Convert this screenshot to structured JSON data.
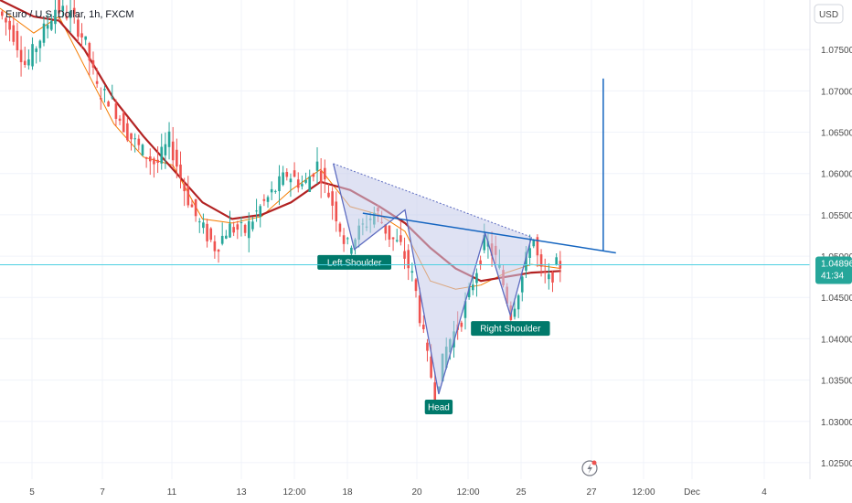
{
  "symbol_title": "Euro / U.S. Dollar, 1h, FXCM",
  "currency_button": "USD",
  "current_price": {
    "value": "1.04896",
    "countdown": "41:34"
  },
  "colors": {
    "up": "#26a69a",
    "down": "#ef5350",
    "ma_slow": "#b22222",
    "ma_fast": "#f57c00",
    "pattern_fill": "#c5cae9",
    "pattern_line": "#5c6bc0",
    "trendline": "#1565c0",
    "price_line": "#4dd0e1",
    "label_bg": "#00796b"
  },
  "chart_data": {
    "type": "candlestick",
    "title": "",
    "y_ticks": [
      "1.07500",
      "1.07000",
      "1.06500",
      "1.06000",
      "1.05500",
      "1.05000",
      "1.04500",
      "1.04000",
      "1.03500",
      "1.03000",
      "1.02500"
    ],
    "x_ticks": [
      "5",
      "7",
      "11",
      "13",
      "12:00",
      "18",
      "20",
      "12:00",
      "25",
      "27",
      "12:00",
      "Dec",
      "4"
    ],
    "ylim": [
      1.023,
      1.081
    ],
    "price_path": [
      [
        0,
        1.08
      ],
      [
        4,
        1.077
      ],
      [
        7,
        1.073
      ],
      [
        10,
        1.076
      ],
      [
        14,
        1.08
      ],
      [
        18,
        1.079
      ],
      [
        21,
        1.076
      ],
      [
        24,
        1.07
      ],
      [
        27,
        1.069
      ],
      [
        31,
        1.065
      ],
      [
        34,
        1.063
      ],
      [
        38,
        1.061
      ],
      [
        41,
        1.064
      ],
      [
        45,
        1.0575
      ],
      [
        48,
        1.054
      ],
      [
        52,
        1.051
      ],
      [
        55,
        1.0535
      ],
      [
        59,
        1.053
      ],
      [
        62,
        1.0555
      ],
      [
        66,
        1.058
      ],
      [
        69,
        1.06
      ],
      [
        73,
        1.0585
      ],
      [
        76,
        1.0612
      ],
      [
        80,
        1.056
      ],
      [
        83,
        1.051
      ],
      [
        86,
        1.053
      ],
      [
        90,
        1.0555
      ],
      [
        93,
        1.0525
      ],
      [
        96,
        1.051
      ],
      [
        99,
        1.047
      ],
      [
        102,
        1.038
      ],
      [
        104,
        1.0335
      ],
      [
        107,
        1.0395
      ],
      [
        110,
        1.042
      ],
      [
        113,
        1.047
      ],
      [
        116,
        1.052
      ],
      [
        119,
        1.049
      ],
      [
        122,
        1.043
      ],
      [
        125,
        1.048
      ],
      [
        127,
        1.053
      ],
      [
        129,
        1.048
      ],
      [
        131,
        1.047
      ],
      [
        133,
        1.049
      ]
    ],
    "sma_slow": [
      [
        0,
        1.081
      ],
      [
        8,
        1.079
      ],
      [
        14,
        1.0785
      ],
      [
        20,
        1.075
      ],
      [
        27,
        1.069
      ],
      [
        34,
        1.0645
      ],
      [
        41,
        1.0605
      ],
      [
        48,
        1.0565
      ],
      [
        55,
        1.0545
      ],
      [
        62,
        1.055
      ],
      [
        69,
        1.0565
      ],
      [
        76,
        1.059
      ],
      [
        83,
        1.058
      ],
      [
        90,
        1.056
      ],
      [
        96,
        1.054
      ],
      [
        102,
        1.051
      ],
      [
        108,
        1.0485
      ],
      [
        114,
        1.047
      ],
      [
        120,
        1.0475
      ],
      [
        126,
        1.048
      ],
      [
        133,
        1.0482
      ]
    ],
    "sma_fast": [
      [
        0,
        1.08
      ],
      [
        8,
        1.077
      ],
      [
        14,
        1.079
      ],
      [
        20,
        1.073
      ],
      [
        27,
        1.066
      ],
      [
        34,
        1.062
      ],
      [
        41,
        1.061
      ],
      [
        48,
        1.0545
      ],
      [
        55,
        1.054
      ],
      [
        62,
        1.0548
      ],
      [
        69,
        1.058
      ],
      [
        76,
        1.0605
      ],
      [
        83,
        1.056
      ],
      [
        90,
        1.055
      ],
      [
        96,
        1.053
      ],
      [
        102,
        1.047
      ],
      [
        108,
        1.046
      ],
      [
        114,
        1.0465
      ],
      [
        120,
        1.048
      ],
      [
        126,
        1.049
      ],
      [
        133,
        1.0485
      ]
    ],
    "pattern": {
      "points": [
        [
          79,
          1.0612
        ],
        [
          84,
          1.0508
        ],
        [
          96,
          1.0556
        ],
        [
          104,
          1.0333
        ],
        [
          115,
          1.0528
        ],
        [
          121,
          1.0428
        ],
        [
          126,
          1.0523
        ]
      ],
      "labels": [
        "Left Shoulder",
        "Head",
        "Right Shoulder"
      ]
    },
    "neckline": {
      "start": [
        86,
        1.0552
      ],
      "end": [
        146,
        1.0504
      ]
    },
    "measured_move": {
      "x": 143,
      "from": 1.0507,
      "to": 1.0715
    },
    "last_price": 1.04896,
    "x_domain": [
      0,
      192
    ]
  }
}
